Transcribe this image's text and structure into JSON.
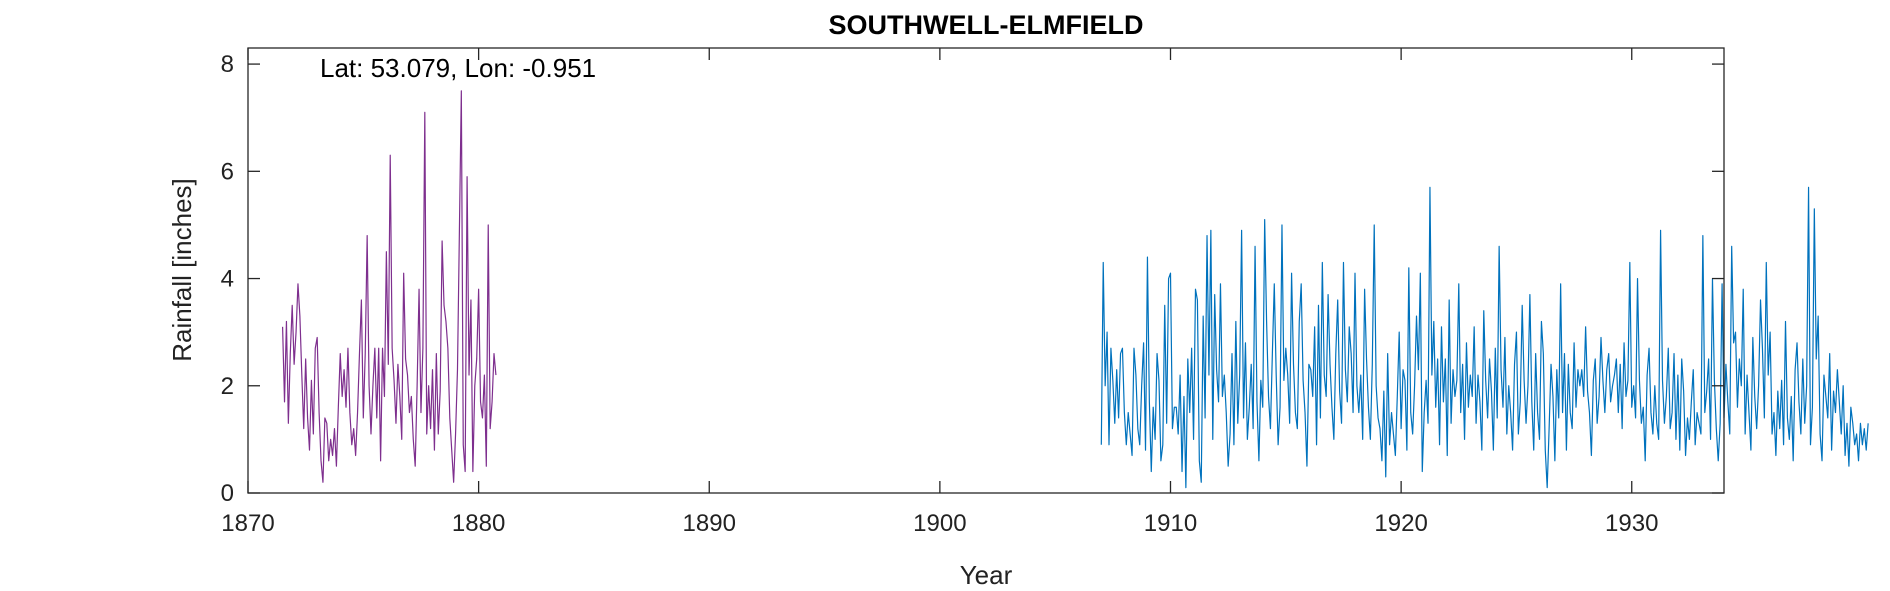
{
  "chart_data": {
    "type": "line",
    "title": "SOUTHWELL-ELMFIELD",
    "annotation": "Lat: 53.079, Lon: -0.951",
    "xlabel": "Year",
    "ylabel": "Rainfall [inches]",
    "xlim": [
      1870,
      1934
    ],
    "ylim": [
      0,
      8.3
    ],
    "xticks": [
      1870,
      1880,
      1890,
      1900,
      1910,
      1920,
      1930
    ],
    "yticks": [
      0,
      2,
      4,
      6,
      8
    ],
    "grid": false,
    "box": true,
    "series": [
      {
        "color": "#7E2F8E",
        "x_start": 1871.5,
        "step": 0.0833333,
        "values": [
          3.1,
          1.7,
          3.2,
          1.3,
          2.6,
          3.5,
          2.4,
          3.0,
          3.9,
          3.3,
          2.2,
          1.2,
          2.5,
          1.4,
          0.8,
          2.1,
          1.1,
          2.7,
          2.9,
          1.5,
          0.6,
          0.2,
          1.4,
          1.3,
          0.6,
          1.0,
          0.7,
          1.2,
          0.5,
          1.6,
          2.6,
          1.8,
          2.3,
          1.6,
          2.7,
          1.5,
          0.9,
          1.2,
          0.7,
          1.5,
          2.6,
          3.6,
          1.4,
          2.6,
          4.8,
          2.0,
          1.1,
          2.0,
          2.7,
          1.4,
          2.7,
          0.6,
          2.7,
          1.8,
          4.5,
          2.4,
          6.3,
          2.7,
          2.1,
          1.3,
          2.4,
          1.8,
          1.0,
          4.1,
          2.5,
          2.2,
          1.5,
          1.8,
          1.0,
          0.5,
          2.0,
          3.8,
          1.5,
          2.7,
          7.1,
          1.1,
          2.0,
          1.2,
          2.3,
          0.8,
          2.6,
          1.1,
          1.9,
          4.7,
          3.5,
          3.2,
          2.7,
          1.4,
          0.8,
          0.2,
          1.1,
          2.3,
          4.9,
          7.5,
          0.9,
          0.4,
          5.9,
          2.2,
          3.6,
          0.4,
          2.0,
          2.5,
          3.8,
          1.7,
          1.4,
          2.2,
          0.5,
          5.0,
          1.2,
          1.7,
          2.6,
          2.2
        ]
      },
      {
        "color": "#0072BD",
        "x_start": 1907.0,
        "step": 0.0833333,
        "values": [
          0.9,
          4.3,
          2.0,
          3.0,
          0.9,
          2.7,
          2.1,
          1.3,
          2.3,
          1.4,
          2.6,
          2.7,
          1.5,
          0.9,
          1.5,
          1.1,
          0.7,
          2.7,
          2.2,
          1.2,
          0.9,
          2.0,
          2.8,
          0.8,
          4.4,
          1.7,
          0.4,
          1.6,
          1.0,
          2.6,
          2.1,
          0.6,
          0.9,
          3.5,
          1.3,
          4.0,
          4.1,
          1.2,
          1.6,
          1.6,
          1.1,
          2.2,
          0.4,
          1.8,
          0.1,
          2.5,
          1.5,
          2.7,
          1.0,
          3.8,
          3.6,
          0.6,
          0.2,
          3.3,
          1.4,
          4.8,
          2.2,
          4.9,
          1.0,
          3.7,
          2.3,
          1.7,
          3.9,
          1.8,
          2.2,
          1.5,
          0.5,
          1.1,
          2.6,
          0.9,
          3.2,
          1.3,
          2.2,
          4.9,
          1.4,
          2.8,
          1.0,
          1.6,
          2.4,
          1.2,
          4.6,
          1.7,
          0.6,
          2.1,
          1.6,
          5.1,
          3.2,
          1.8,
          1.2,
          2.6,
          3.9,
          2.2,
          0.9,
          1.6,
          5.0,
          2.1,
          2.7,
          2.2,
          1.3,
          4.1,
          2.4,
          1.5,
          1.2,
          3.2,
          3.9,
          2.1,
          1.5,
          0.5,
          2.4,
          2.3,
          1.8,
          3.1,
          0.9,
          3.5,
          1.4,
          4.3,
          2.2,
          1.8,
          3.7,
          2.4,
          1.6,
          1.0,
          2.6,
          3.6,
          1.9,
          1.3,
          4.3,
          2.3,
          1.7,
          3.1,
          2.6,
          1.5,
          4.1,
          2.0,
          1.5,
          2.2,
          1.0,
          3.8,
          2.5,
          1.6,
          1.0,
          2.4,
          5.0,
          2.0,
          1.4,
          1.2,
          0.6,
          1.9,
          0.3,
          2.6,
          0.9,
          1.5,
          1.1,
          0.7,
          1.8,
          3.0,
          1.2,
          2.3,
          2.1,
          0.8,
          4.2,
          1.5,
          1.1,
          2.0,
          3.3,
          2.3,
          4.1,
          0.4,
          1.5,
          2.1,
          1.3,
          5.7,
          2.2,
          3.2,
          1.6,
          2.5,
          0.9,
          3.1,
          1.7,
          2.5,
          0.7,
          3.6,
          1.3,
          2.3,
          1.8,
          2.1,
          3.9,
          1.5,
          2.4,
          1.0,
          2.8,
          1.6,
          2.2,
          1.8,
          3.1,
          1.3,
          2.2,
          1.7,
          0.8,
          3.4,
          2.1,
          1.4,
          2.5,
          1.9,
          0.8,
          2.7,
          1.4,
          4.6,
          2.3,
          1.6,
          2.9,
          1.1,
          2.0,
          1.5,
          0.8,
          2.4,
          3.0,
          1.1,
          1.7,
          3.5,
          2.1,
          1.3,
          2.0,
          3.7,
          1.7,
          0.8,
          2.6,
          1.5,
          1.0,
          3.2,
          2.6,
          0.8,
          0.1,
          1.2,
          2.4,
          1.8,
          0.6,
          2.3,
          1.4,
          3.9,
          1.5,
          2.6,
          0.8,
          2.4,
          1.5,
          1.2,
          2.8,
          1.6,
          2.3,
          2.0,
          2.3,
          1.8,
          3.1,
          1.9,
          1.5,
          0.7,
          2.1,
          2.5,
          1.3,
          1.8,
          2.9,
          2.1,
          1.5,
          2.3,
          2.6,
          1.7,
          2.0,
          2.2,
          2.5,
          1.5,
          2.4,
          1.2,
          2.8,
          1.8,
          2.1,
          4.3,
          1.6,
          2.0,
          1.4,
          4.0,
          2.1,
          1.3,
          1.6,
          0.6,
          2.2,
          2.7,
          1.5,
          1.1,
          2.0,
          1.3,
          1.0,
          4.9,
          2.1,
          1.3,
          1.8,
          2.7,
          1.2,
          1.5,
          2.6,
          1.0,
          2.2,
          0.8,
          2.5,
          1.9,
          0.7,
          1.4,
          1.0,
          1.7,
          2.3,
          0.9,
          1.5,
          1.3,
          1.1,
          4.8,
          1.5,
          1.9,
          2.5,
          1.0,
          4.0,
          2.1,
          1.2,
          0.6,
          1.3,
          3.9,
          1.4,
          2.4,
          1.7,
          1.1,
          4.6,
          2.8,
          3.0,
          1.6,
          2.5,
          2.0,
          3.8,
          1.1,
          2.2,
          1.5,
          0.8,
          2.9,
          1.8,
          1.2,
          2.0,
          3.6,
          2.7,
          1.4,
          4.3,
          2.2,
          3.0,
          1.1,
          1.5,
          0.7,
          1.9,
          1.2,
          2.1,
          0.9,
          3.2,
          1.4,
          1.0,
          1.8,
          0.6,
          2.3,
          2.8,
          1.7,
          1.1,
          2.5,
          1.3,
          2.0,
          5.7,
          0.9,
          1.6,
          5.3,
          2.5,
          3.3,
          1.1,
          0.6,
          2.2,
          1.8,
          1.4,
          2.6,
          0.8,
          1.9,
          1.5,
          2.3,
          1.7,
          1.1,
          2.0,
          0.7,
          1.3,
          0.5,
          1.6,
          1.3,
          0.9,
          1.1,
          0.6,
          1.3,
          0.9,
          1.2,
          0.8,
          1.3
        ]
      }
    ]
  }
}
